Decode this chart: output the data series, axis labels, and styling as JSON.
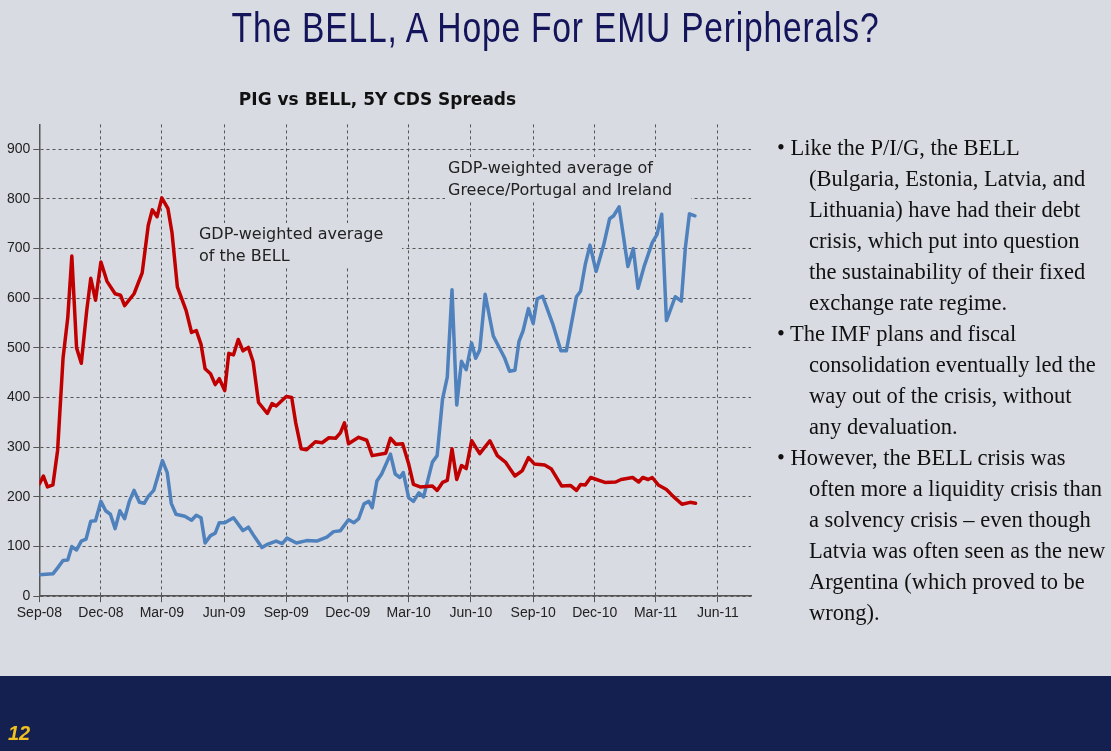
{
  "chart_data": {
    "type": "line",
    "title": "The BELL, A Hope For EMU Peripherals?",
    "subtitle": "PIG vs BELL, 5Y CDS Spreads",
    "xlim": [
      "2008-09-01",
      "2011-07-20"
    ],
    "xticks": [
      {
        "value": "2008-09-01",
        "label": "Sep-08"
      },
      {
        "value": "2008-12-01",
        "label": "Dec-08"
      },
      {
        "value": "2009-03-01",
        "label": "Mar-09"
      },
      {
        "value": "2009-06-01",
        "label": "Jun-09"
      },
      {
        "value": "2009-09-01",
        "label": "Sep-09"
      },
      {
        "value": "2009-12-01",
        "label": "Dec-09"
      },
      {
        "value": "2010-03-01",
        "label": "Mar-10"
      },
      {
        "value": "2010-06-01",
        "label": "Jun-10"
      },
      {
        "value": "2010-09-01",
        "label": "Sep-10"
      },
      {
        "value": "2010-12-01",
        "label": "Dec-10"
      },
      {
        "value": "2011-03-01",
        "label": "Mar-11"
      },
      {
        "value": "2011-06-01",
        "label": "Jun-11"
      }
    ],
    "ylim": [
      0,
      950
    ],
    "yticks": [
      0,
      100,
      200,
      300,
      400,
      500,
      600,
      700,
      800,
      900
    ],
    "grid": true,
    "legend": false,
    "marker": "none",
    "line_style": "solid",
    "series": [
      {
        "name": "GDP-weighted average of the BELL",
        "color": "#c00000",
        "x": [
          "2008-09-01",
          "2008-09-07",
          "2008-09-13",
          "2008-09-21",
          "2008-09-28",
          "2008-10-06",
          "2008-10-13",
          "2008-10-19",
          "2008-10-26",
          "2008-11-02",
          "2008-11-10",
          "2008-11-16",
          "2008-11-23",
          "2008-12-01",
          "2008-12-10",
          "2008-12-22",
          "2008-12-30",
          "2009-01-05",
          "2009-01-19",
          "2009-01-31",
          "2009-02-09",
          "2009-02-15",
          "2009-02-22",
          "2009-03-01",
          "2009-03-10",
          "2009-03-16",
          "2009-03-24",
          "2009-04-06",
          "2009-04-14",
          "2009-04-21",
          "2009-04-28",
          "2009-05-04",
          "2009-05-12",
          "2009-05-19",
          "2009-05-25",
          "2009-06-02",
          "2009-06-08",
          "2009-06-15",
          "2009-06-22",
          "2009-06-29",
          "2009-07-07",
          "2009-07-14",
          "2009-07-22",
          "2009-08-04",
          "2009-08-11",
          "2009-08-17",
          "2009-09-01",
          "2009-09-09",
          "2009-09-15",
          "2009-09-23",
          "2009-10-01",
          "2009-10-14",
          "2009-10-24",
          "2009-11-03",
          "2009-11-13",
          "2009-11-20",
          "2009-11-26",
          "2009-12-02",
          "2009-12-17",
          "2009-12-29",
          "2010-01-06",
          "2010-01-26",
          "2010-02-02",
          "2010-02-10",
          "2010-02-20",
          "2010-03-01",
          "2010-03-08",
          "2010-03-18",
          "2010-04-05",
          "2010-04-12",
          "2010-04-20",
          "2010-04-27",
          "2010-05-04",
          "2010-05-11",
          "2010-05-18",
          "2010-05-25",
          "2010-06-02",
          "2010-06-14",
          "2010-06-29",
          "2010-07-10",
          "2010-07-22",
          "2010-08-05",
          "2010-08-16",
          "2010-08-25",
          "2010-09-03",
          "2010-09-18",
          "2010-09-28",
          "2010-10-13",
          "2010-10-26",
          "2010-11-04",
          "2010-11-10",
          "2010-11-17",
          "2010-11-25",
          "2010-12-16",
          "2011-01-01",
          "2011-01-09",
          "2011-01-26",
          "2011-02-04",
          "2011-02-10",
          "2011-02-18",
          "2011-02-24",
          "2011-03-05",
          "2011-03-17",
          "2011-03-27",
          "2011-04-09",
          "2011-04-21",
          "2011-04-29"
        ],
        "values": [
          226,
          242,
          220,
          224,
          294,
          479,
          561,
          685,
          500,
          469,
          575,
          640,
          596,
          673,
          634,
          609,
          606,
          585,
          609,
          651,
          747,
          778,
          764,
          802,
          781,
          733,
          623,
          575,
          531,
          535,
          507,
          458,
          448,
          426,
          438,
          414,
          489,
          486,
          517,
          494,
          501,
          472,
          390,
          368,
          388,
          383,
          402,
          400,
          349,
          297,
          295,
          311,
          309,
          319,
          318,
          329,
          349,
          307,
          320,
          314,
          283,
          288,
          318,
          306,
          307,
          266,
          225,
          220,
          222,
          213,
          229,
          233,
          297,
          235,
          263,
          257,
          313,
          287,
          313,
          283,
          270,
          242,
          253,
          279,
          266,
          264,
          256,
          222,
          223,
          213,
          225,
          224,
          239,
          229,
          230,
          235,
          239,
          230,
          239,
          235,
          239,
          224,
          215,
          201,
          185,
          189,
          187
        ]
      },
      {
        "name": "GDP-weighted average of Greece/Portugal and Ireland",
        "color": "#4f81bd",
        "x": [
          "2008-09-01",
          "2008-09-21",
          "2008-09-28",
          "2008-10-06",
          "2008-10-13",
          "2008-10-19",
          "2008-10-26",
          "2008-11-02",
          "2008-11-09",
          "2008-11-16",
          "2008-11-23",
          "2008-12-01",
          "2008-12-08",
          "2008-12-15",
          "2008-12-22",
          "2008-12-29",
          "2009-01-05",
          "2009-01-12",
          "2009-01-19",
          "2009-01-27",
          "2009-02-03",
          "2009-02-09",
          "2009-02-17",
          "2009-03-02",
          "2009-03-09",
          "2009-03-15",
          "2009-03-22",
          "2009-04-04",
          "2009-04-14",
          "2009-04-21",
          "2009-04-28",
          "2009-05-04",
          "2009-05-12",
          "2009-05-19",
          "2009-05-25",
          "2009-06-02",
          "2009-06-15",
          "2009-06-29",
          "2009-07-07",
          "2009-07-14",
          "2009-07-27",
          "2009-08-05",
          "2009-08-17",
          "2009-08-26",
          "2009-09-02",
          "2009-09-16",
          "2009-10-01",
          "2009-10-16",
          "2009-10-31",
          "2009-11-10",
          "2009-11-20",
          "2009-12-02",
          "2009-12-10",
          "2009-12-17",
          "2009-12-25",
          "2010-01-01",
          "2010-01-06",
          "2010-01-13",
          "2010-01-20",
          "2010-02-02",
          "2010-02-09",
          "2010-02-16",
          "2010-02-21",
          "2010-03-01",
          "2010-03-08",
          "2010-03-16",
          "2010-03-23",
          "2010-04-05",
          "2010-04-12",
          "2010-04-20",
          "2010-04-27",
          "2010-05-04",
          "2010-05-11",
          "2010-05-18",
          "2010-05-25",
          "2010-06-02",
          "2010-06-08",
          "2010-06-14",
          "2010-06-22",
          "2010-07-04",
          "2010-07-21",
          "2010-07-28",
          "2010-08-05",
          "2010-08-11",
          "2010-08-17",
          "2010-08-25",
          "2010-09-01",
          "2010-09-07",
          "2010-09-15",
          "2010-09-30",
          "2010-10-12",
          "2010-10-20",
          "2010-11-04",
          "2010-11-10",
          "2010-11-17",
          "2010-11-24",
          "2010-12-03",
          "2010-12-14",
          "2010-12-23",
          "2010-12-29",
          "2011-01-06",
          "2011-01-19",
          "2011-01-27",
          "2011-02-03",
          "2011-02-12",
          "2011-02-24",
          "2011-03-03",
          "2011-03-10",
          "2011-03-17",
          "2011-03-30",
          "2011-04-08",
          "2011-04-14",
          "2011-04-20",
          "2011-04-28"
        ],
        "values": [
          43,
          45,
          57,
          72,
          73,
          100,
          93,
          111,
          115,
          151,
          152,
          191,
          172,
          165,
          136,
          172,
          156,
          191,
          213,
          189,
          187,
          201,
          213,
          273,
          249,
          187,
          165,
          161,
          153,
          163,
          158,
          107,
          122,
          127,
          148,
          148,
          158,
          132,
          139,
          124,
          98,
          105,
          111,
          106,
          117,
          107,
          112,
          111,
          119,
          130,
          132,
          154,
          148,
          156,
          186,
          191,
          178,
          232,
          246,
          286,
          246,
          239,
          249,
          198,
          191,
          208,
          200,
          270,
          283,
          397,
          441,
          617,
          385,
          473,
          456,
          510,
          479,
          496,
          608,
          524,
          479,
          453,
          455,
          513,
          534,
          579,
          549,
          599,
          604,
          548,
          494,
          494,
          603,
          614,
          668,
          707,
          654,
          706,
          760,
          766,
          784,
          664,
          700,
          620,
          664,
          712,
          728,
          769,
          555,
          603,
          594,
          702,
          770,
          766
        ]
      }
    ],
    "annotations": [
      "• Like the P/I/G, the BELL (Bulgaria, Estonia, Latvia, and Lithuania) have had their debt crisis, which put into question the sustainability of their fixed exchange rate regime.",
      "• The IMF plans and fiscal consolidation eventually led the way out of the crisis, without any devaluation.",
      "• However, the BELL crisis was often more a liquidity crisis than a solvency crisis – even though Latvia was often seen as the new Argentina (which proved to be wrong).",
      "12"
    ]
  }
}
